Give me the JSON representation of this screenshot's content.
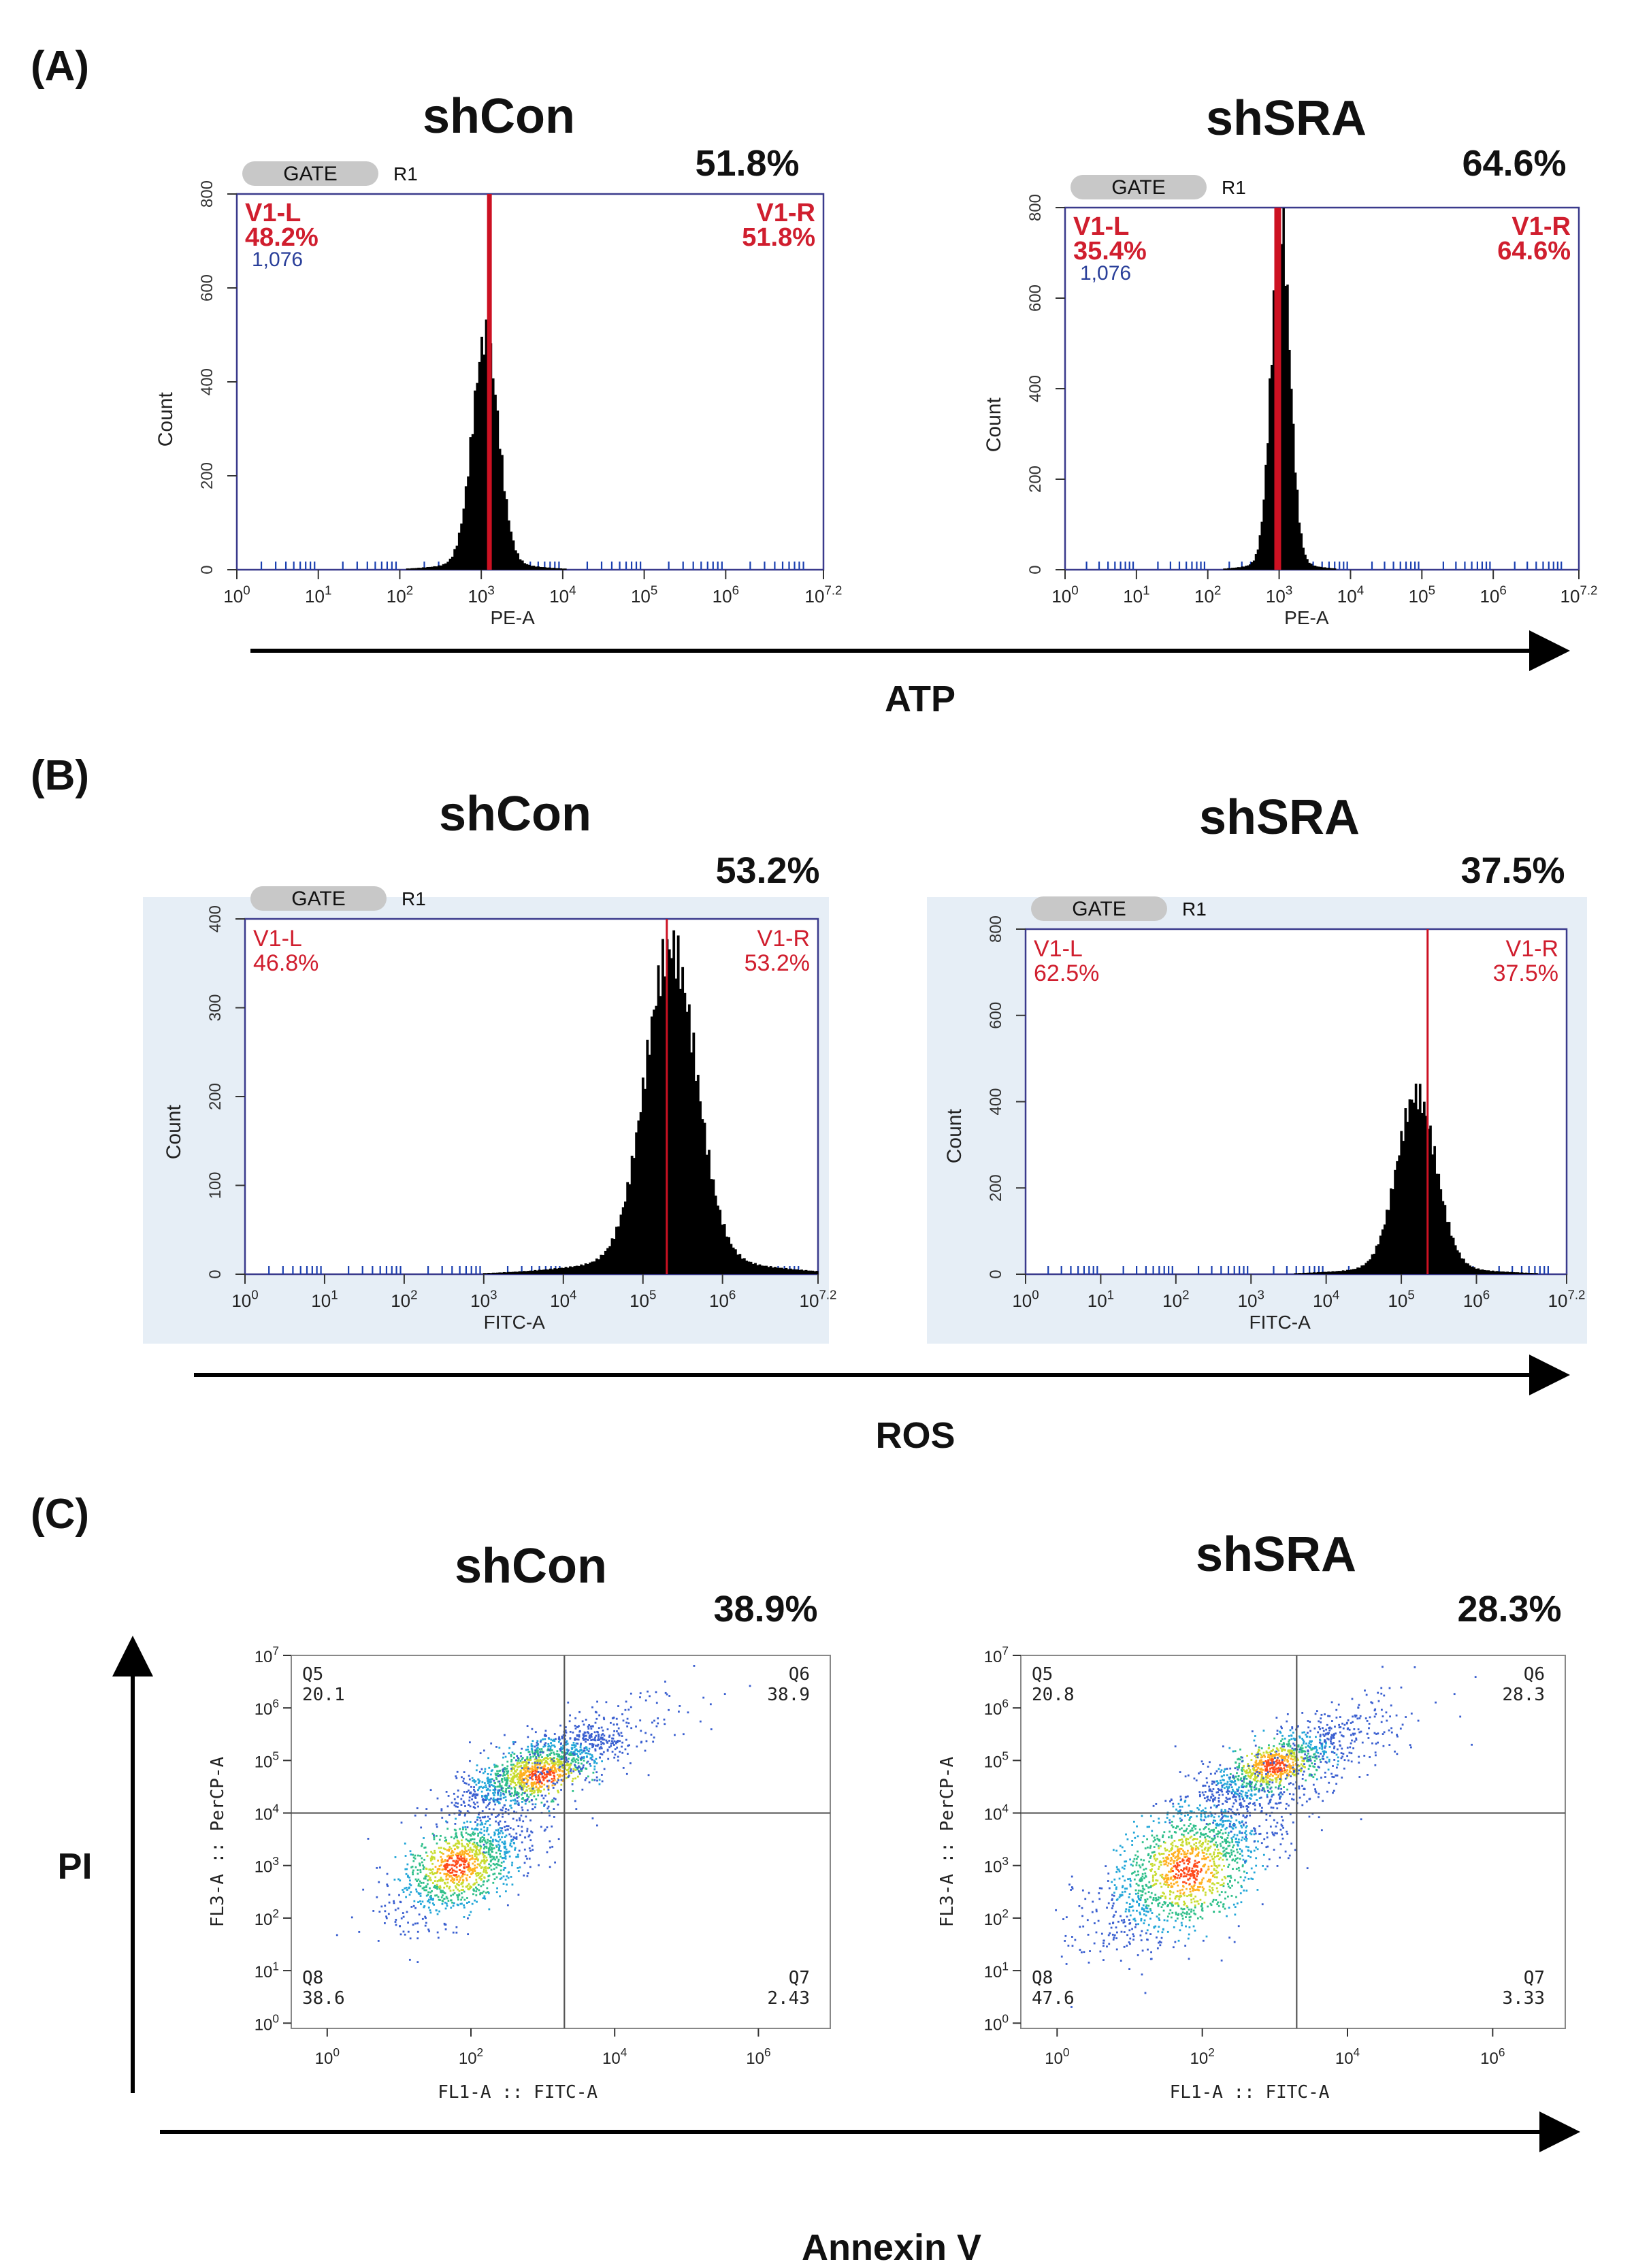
{
  "figure": {
    "ticks": {
      "hist_x": [
        "10^0",
        "10^1",
        "10^2",
        "10^3",
        "10^4",
        "10^5",
        "10^6",
        "10^7.2"
      ],
      "dot_x": [
        "10^0",
        "10^2",
        "10^4",
        "10^6"
      ],
      "dot_y": [
        "10^0",
        "10^1",
        "10^2",
        "10^3",
        "10^4",
        "10^5",
        "10^6",
        "10^7"
      ]
    },
    "colors": {
      "gate_line": "#cc1122",
      "frame": "#3a3a8c",
      "label_red": "#d01e2e",
      "label_blue": "#2a3f9a",
      "panel_bg": "#e6eef6",
      "hist_fill": "#000000"
    }
  },
  "panels": [
    {
      "id": "A",
      "label": "(A)",
      "axis_label": "ATP",
      "plots": [
        {
          "condition": "shCon",
          "percent": "51.8%",
          "gate": "GATE",
          "gate_region": "R1",
          "left_region": "V1-L",
          "left_pct": "48.2%",
          "left_value": "1,076",
          "right_region": "V1-R",
          "right_pct": "51.8%",
          "xlabel": "PE-A",
          "ylabel": "Count",
          "y_ticks": [
            "0",
            "200",
            "400",
            "600",
            "800"
          ],
          "chart_data": {
            "type": "histogram",
            "x_scale": "log10",
            "xlim": [
              0,
              7.2
            ],
            "ylim": [
              0,
              800
            ],
            "gate_at_log": 3.1,
            "peak_log": 3.05,
            "peak_count": 480,
            "spread_log": 0.16,
            "tail": 0.03
          }
        },
        {
          "condition": "shSRA",
          "percent": "64.6%",
          "gate": "GATE",
          "gate_region": "R1",
          "left_region": "V1-L",
          "left_pct": "35.4%",
          "left_value": "1,076",
          "right_region": "V1-R",
          "right_pct": "64.6%",
          "xlabel": "PE-A",
          "ylabel": "Count",
          "y_ticks": [
            "0",
            "200",
            "400",
            "600",
            "800"
          ],
          "chart_data": {
            "type": "histogram",
            "x_scale": "log10",
            "xlim": [
              0,
              7.2
            ],
            "ylim": [
              0,
              800
            ],
            "gate_at_log": 2.98,
            "peak_log": 3.02,
            "peak_count": 760,
            "spread_log": 0.13,
            "tail": 0.02
          }
        }
      ]
    },
    {
      "id": "B",
      "label": "(B)",
      "axis_label": "ROS",
      "plots": [
        {
          "condition": "shCon",
          "percent": "53.2%",
          "gate": "GATE",
          "gate_region": "R1",
          "left_region": "V1-L",
          "left_pct": "46.8%",
          "right_region": "V1-R",
          "right_pct": "53.2%",
          "xlabel": "FITC-A",
          "ylabel": "Count",
          "y_ticks": [
            "0",
            "100",
            "200",
            "300",
            "400"
          ],
          "chart_data": {
            "type": "histogram",
            "x_scale": "log10",
            "xlim": [
              0,
              7.2
            ],
            "ylim": [
              0,
              400
            ],
            "gate_at_log": 5.3,
            "peak_log": 5.35,
            "peak_count": 350,
            "spread_log": 0.32,
            "tail": 0.05
          }
        },
        {
          "condition": "shSRA",
          "percent": "37.5%",
          "gate": "GATE",
          "gate_region": "R1",
          "left_region": "V1-L",
          "left_pct": "62.5%",
          "right_region": "V1-R",
          "right_pct": "37.5%",
          "xlabel": "FITC-A",
          "ylabel": "Count",
          "y_ticks": [
            "0",
            "200",
            "400",
            "600",
            "800"
          ],
          "chart_data": {
            "type": "histogram",
            "x_scale": "log10",
            "xlim": [
              0,
              7.2
            ],
            "ylim": [
              0,
              800
            ],
            "gate_at_log": 5.35,
            "peak_log": 5.2,
            "peak_count": 400,
            "spread_log": 0.26,
            "tail": 0.04
          }
        }
      ]
    },
    {
      "id": "C",
      "label": "(C)",
      "x_axis_label": "Annexin V",
      "y_axis_label": "PI",
      "plots": [
        {
          "condition": "shCon",
          "percent": "38.9%",
          "xlabel": "FL1-A :: FITC-A",
          "ylabel": "FL3-A :: PerCP-A",
          "quadrants": [
            {
              "name": "Q5",
              "value": "20.1",
              "pos": "top-left"
            },
            {
              "name": "Q6",
              "value": "38.9",
              "pos": "top-right"
            },
            {
              "name": "Q8",
              "value": "38.6",
              "pos": "bottom-left"
            },
            {
              "name": "Q7",
              "value": "2.43",
              "pos": "bottom-right"
            }
          ],
          "chart_data": {
            "type": "scatter",
            "x_scale": "log10",
            "y_scale": "log10",
            "xlim": [
              -0.5,
              7
            ],
            "ylim": [
              -0.1,
              7
            ],
            "gate_x_log": 3.3,
            "gate_y_log": 4.0,
            "clusters": [
              {
                "cx": 2.9,
                "cy": 4.8,
                "sx": 0.55,
                "sy": 0.4,
                "rho": 0.75,
                "n": 1200,
                "peak": [
                  3.0,
                  4.7
                ]
              },
              {
                "cx": 1.9,
                "cy": 3.0,
                "sx": 0.5,
                "sy": 0.55,
                "rho": 0.6,
                "n": 1100,
                "peak": [
                  1.8,
                  3.0
                ]
              },
              {
                "cx": 3.5,
                "cy": 5.2,
                "sx": 0.8,
                "sy": 0.6,
                "rho": 0.75,
                "n": 300
              }
            ]
          }
        },
        {
          "condition": "shSRA",
          "percent": "28.3%",
          "xlabel": "FL1-A :: FITC-A",
          "ylabel": "FL3-A :: PerCP-A",
          "quadrants": [
            {
              "name": "Q5",
              "value": "20.8",
              "pos": "top-left"
            },
            {
              "name": "Q6",
              "value": "28.3",
              "pos": "top-right"
            },
            {
              "name": "Q8",
              "value": "47.6",
              "pos": "bottom-left"
            },
            {
              "name": "Q7",
              "value": "3.33",
              "pos": "bottom-right"
            }
          ],
          "chart_data": {
            "type": "scatter",
            "x_scale": "log10",
            "y_scale": "log10",
            "xlim": [
              -0.5,
              7
            ],
            "ylim": [
              -0.1,
              7
            ],
            "gate_x_log": 3.3,
            "gate_y_log": 4.0,
            "clusters": [
              {
                "cx": 3.0,
                "cy": 4.9,
                "sx": 0.5,
                "sy": 0.4,
                "rho": 0.75,
                "n": 900,
                "peak": [
                  3.0,
                  4.9
                ]
              },
              {
                "cx": 1.8,
                "cy": 3.0,
                "sx": 0.6,
                "sy": 0.75,
                "rho": 0.55,
                "n": 1500,
                "peak": [
                  1.8,
                  2.9
                ]
              },
              {
                "cx": 3.5,
                "cy": 5.0,
                "sx": 0.8,
                "sy": 0.7,
                "rho": 0.7,
                "n": 300
              }
            ]
          }
        }
      ]
    }
  ]
}
